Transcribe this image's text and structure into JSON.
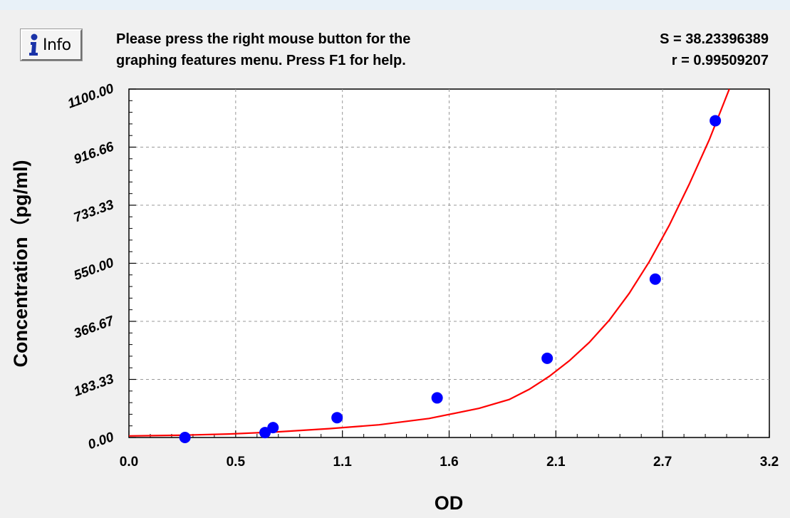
{
  "info_button": {
    "label": "Info",
    "icon": "info-icon"
  },
  "hint": {
    "line1": "Please press the right mouse button for the",
    "line2": "graphing features menu.  Press F1 for help."
  },
  "stats": {
    "s_line": "S = 38.23396389",
    "r_line": "r = 0.99509207"
  },
  "colors": {
    "background": "#f0f0f0",
    "plot_background": "#ffffff",
    "points": "#0000ff",
    "curve": "#ff0000",
    "grid": "#999999"
  },
  "chart_data": {
    "type": "scatter",
    "xlabel": "OD",
    "ylabel": "Concentration（pg/ml)",
    "xlim": [
      0.0,
      3.2
    ],
    "ylim": [
      0.0,
      1100.0
    ],
    "x_ticks": [
      "0.0",
      "0.5",
      "1.1",
      "1.6",
      "2.1",
      "2.7",
      "3.2"
    ],
    "y_ticks": [
      "0.00",
      "183.33",
      "366.67",
      "550.00",
      "733.33",
      "916.66",
      "1100.00"
    ],
    "grid": true,
    "series": [
      {
        "kind": "points",
        "x": [
          0.28,
          0.68,
          0.72,
          1.04,
          1.54,
          2.09,
          2.63,
          2.93
        ],
        "y": [
          0,
          15.6,
          31.2,
          62.5,
          125,
          250,
          500,
          1000
        ]
      },
      {
        "kind": "fit-curve",
        "x": [
          0.0,
          0.25,
          0.5,
          0.75,
          1.0,
          1.25,
          1.5,
          1.75,
          1.9,
          2.0,
          2.1,
          2.2,
          2.3,
          2.4,
          2.5,
          2.6,
          2.7,
          2.8,
          2.9,
          3.0
        ],
        "y": [
          5,
          7,
          11,
          18,
          28,
          40,
          60,
          92,
          120,
          152,
          193,
          242,
          300,
          370,
          455,
          555,
          670,
          800,
          940,
          1100
        ]
      }
    ]
  }
}
